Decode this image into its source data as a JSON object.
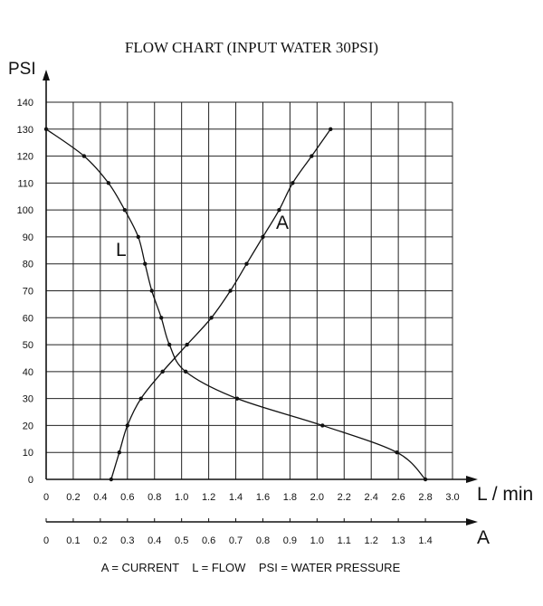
{
  "chart_data": {
    "type": "line",
    "title": "FLOW CHART (INPUT WATER 30PSI)",
    "ylabel": "PSI",
    "xlabel": "L / min",
    "x2label": "A",
    "ylim": [
      0,
      140
    ],
    "xlim": [
      0,
      3.0
    ],
    "x2lim": [
      0,
      1.5
    ],
    "y_ticks": [
      "0",
      "10",
      "20",
      "30",
      "40",
      "50",
      "60",
      "70",
      "80",
      "90",
      "100",
      "110",
      "120",
      "130",
      "140"
    ],
    "x_ticks": [
      "0",
      "0.2",
      "0.4",
      "0.6",
      "0.8",
      "1.0",
      "1.2",
      "1.4",
      "1.6",
      "1.8",
      "2.0",
      "2.2",
      "2.4",
      "2.6",
      "2.8",
      "3.0"
    ],
    "x2_ticks": [
      "0",
      "0.1",
      "0.2",
      "0.3",
      "0.4",
      "0.5",
      "0.6",
      "0.7",
      "0.8",
      "0.9",
      "1.0",
      "1.1",
      "1.2",
      "1.3",
      "1.4"
    ],
    "grid": true,
    "series": [
      {
        "name": "L",
        "axis": "L / min",
        "points": [
          [
            0.0,
            130
          ],
          [
            0.28,
            120
          ],
          [
            0.46,
            110
          ],
          [
            0.58,
            100
          ],
          [
            0.68,
            90
          ],
          [
            0.73,
            80
          ],
          [
            0.78,
            70
          ],
          [
            0.85,
            60
          ],
          [
            0.91,
            50
          ],
          [
            1.03,
            40
          ],
          [
            1.41,
            30
          ],
          [
            2.04,
            20
          ],
          [
            2.59,
            10
          ],
          [
            2.8,
            0
          ]
        ]
      },
      {
        "name": "A",
        "axis": "A",
        "points": [
          [
            0.24,
            0
          ],
          [
            0.27,
            10
          ],
          [
            0.3,
            20
          ],
          [
            0.35,
            30
          ],
          [
            0.43,
            40
          ],
          [
            0.52,
            50
          ],
          [
            0.61,
            60
          ],
          [
            0.68,
            70
          ],
          [
            0.74,
            80
          ],
          [
            0.8,
            90
          ],
          [
            0.86,
            100
          ],
          [
            0.91,
            110
          ],
          [
            0.98,
            120
          ],
          [
            1.05,
            130
          ]
        ]
      }
    ],
    "legend_text": "A = CURRENT    L = FLOW    PSI = WATER PRESSURE"
  }
}
